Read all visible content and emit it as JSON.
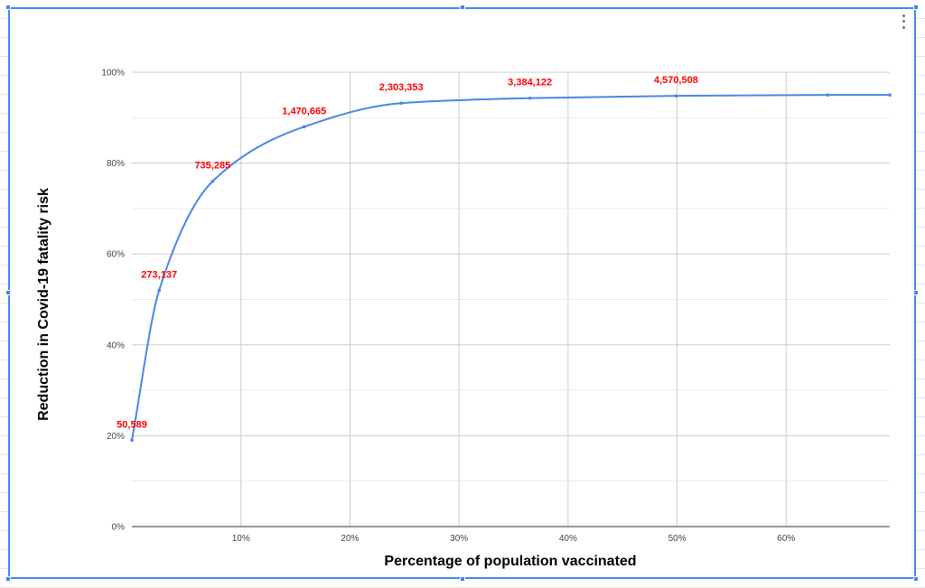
{
  "chart_data": {
    "type": "line",
    "title": "",
    "xlabel": "Percentage of population vaccinated",
    "ylabel": "Reduction in Covid-19 fatality risk",
    "xlim": [
      0,
      0.695
    ],
    "ylim": [
      0,
      1
    ],
    "x_ticks": [
      {
        "value": 0.1,
        "label": "10%"
      },
      {
        "value": 0.2,
        "label": "20%"
      },
      {
        "value": 0.3,
        "label": "30%"
      },
      {
        "value": 0.4,
        "label": "40%"
      },
      {
        "value": 0.5,
        "label": "50%"
      },
      {
        "value": 0.6,
        "label": "60%"
      }
    ],
    "y_ticks": [
      {
        "value": 0,
        "label": "0%"
      },
      {
        "value": 0.2,
        "label": "20%"
      },
      {
        "value": 0.4,
        "label": "40%"
      },
      {
        "value": 0.6,
        "label": "60%"
      },
      {
        "value": 0.8,
        "label": "80%"
      },
      {
        "value": 1.0,
        "label": "100%"
      }
    ],
    "grid": true,
    "smooth": true,
    "series": [
      {
        "color": "#4a86e8",
        "x": [
          0.0,
          0.025,
          0.074,
          0.158,
          0.247,
          0.365,
          0.499,
          0.638,
          0.695
        ],
        "y": [
          0.19,
          0.52,
          0.76,
          0.88,
          0.932,
          0.943,
          0.948,
          0.95,
          0.95
        ],
        "data_labels": [
          "50,589",
          "273,137",
          "735,285",
          "1,470,665",
          "2,303,353",
          "3,384,122",
          "4,570,508",
          "",
          ""
        ]
      }
    ],
    "data_label_color": "#ff0000"
  },
  "colors": {
    "selection": "#4285f4",
    "gridline": "#cccccc",
    "axis_line": "#333333"
  },
  "controls": {
    "menu_icon": "kebab-menu-icon"
  }
}
